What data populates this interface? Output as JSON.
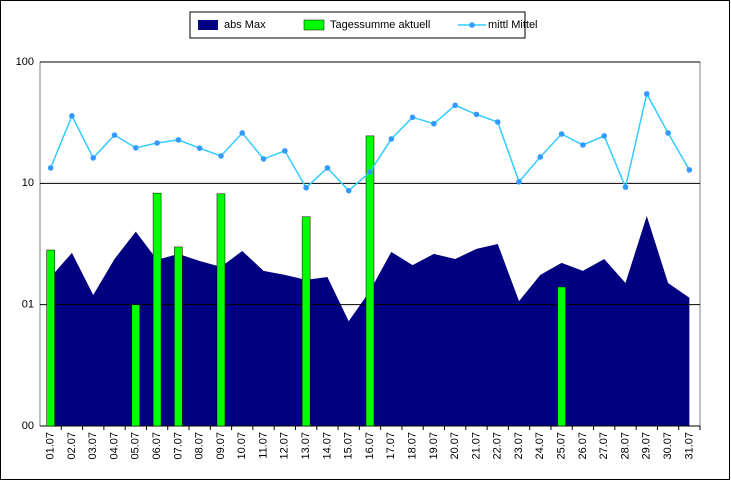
{
  "chart_data": {
    "type": "combo",
    "log_scale": true,
    "grid": true,
    "categories": [
      "01.07",
      "02.07",
      "03.07",
      "04.07",
      "05.07",
      "06.07",
      "07.07",
      "08.07",
      "09.07",
      "10.07",
      "11.07",
      "12.07",
      "13.07",
      "14.07",
      "15.07",
      "16.07",
      "17.07",
      "18.07",
      "19.07",
      "20.07",
      "21.07",
      "22.07",
      "23.07",
      "24.07",
      "25.07",
      "26.07",
      "27.07",
      "28.07",
      "29.07",
      "30.07",
      "31.07"
    ],
    "ylim": [
      0.1,
      100
    ],
    "yticks": [
      {
        "value": 0.1,
        "label": "00"
      },
      {
        "value": 1,
        "label": "01"
      },
      10,
      100
    ],
    "series": [
      {
        "name": "abs Max",
        "kind": "area",
        "color": "#000080",
        "values": [
          1.69,
          2.67,
          1.2,
          2.38,
          4.0,
          2.34,
          2.62,
          2.29,
          2.05,
          2.77,
          1.9,
          1.76,
          1.6,
          1.69,
          0.73,
          1.3,
          2.72,
          2.12,
          2.62,
          2.38,
          2.88,
          3.16,
          1.07,
          1.76,
          2.21,
          1.9,
          2.38,
          1.51,
          5.38,
          1.51,
          1.14
        ]
      },
      {
        "name": "Tagessumme aktuell",
        "kind": "bar",
        "color": "#00ff00",
        "values": [
          2.82,
          null,
          null,
          null,
          1.0,
          8.3,
          2.99,
          null,
          8.2,
          null,
          null,
          null,
          5.3,
          null,
          null,
          24.6,
          null,
          null,
          null,
          null,
          null,
          null,
          null,
          null,
          1.4,
          null,
          null,
          null,
          null,
          null,
          null
        ]
      },
      {
        "name": "mittl Mittel",
        "kind": "line",
        "color": "#33ccff",
        "values": [
          13.4,
          36,
          16.2,
          25,
          19.6,
          21.5,
          22.8,
          19.5,
          16.8,
          26,
          15.9,
          18.5,
          9.2,
          13.4,
          8.7,
          12.4,
          23.2,
          35,
          31,
          44,
          37,
          32,
          10.3,
          16.5,
          25.5,
          20.7,
          24.6,
          9.3,
          54.6,
          26,
          12.9
        ]
      }
    ]
  }
}
